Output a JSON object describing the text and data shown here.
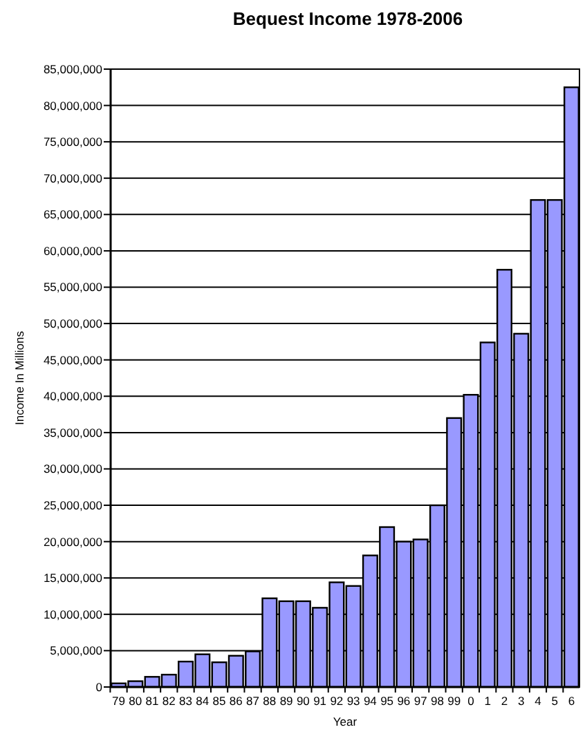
{
  "chart_data": {
    "type": "bar",
    "title": "Bequest Income 1978-2006",
    "xlabel": "Year",
    "ylabel": "Income In Millions",
    "categories": [
      "79",
      "80",
      "81",
      "82",
      "83",
      "84",
      "85",
      "86",
      "87",
      "88",
      "89",
      "90",
      "91",
      "92",
      "93",
      "94",
      "95",
      "96",
      "97",
      "98",
      "99",
      "0",
      "1",
      "2",
      "3",
      "4",
      "5",
      "6"
    ],
    "values": [
      500000,
      800000,
      1400000,
      1700000,
      3500000,
      4500000,
      3400000,
      4300000,
      4900000,
      12200000,
      11800000,
      11800000,
      10900000,
      14400000,
      13900000,
      18100000,
      22000000,
      20000000,
      20300000,
      25000000,
      37000000,
      40200000,
      47400000,
      57400000,
      48600000,
      67000000,
      67000000,
      82500000
    ],
    "color": "#9999ff",
    "ylim": [
      0,
      85000000
    ],
    "yticks": [
      {
        "value": 0,
        "label": "0"
      },
      {
        "value": 5000000,
        "label": "5,000,000"
      },
      {
        "value": 10000000,
        "label": "10,000,000"
      },
      {
        "value": 15000000,
        "label": "15,000,000"
      },
      {
        "value": 20000000,
        "label": "20,000,000"
      },
      {
        "value": 25000000,
        "label": "25,000,000"
      },
      {
        "value": 30000000,
        "label": "30,000,000"
      },
      {
        "value": 35000000,
        "label": "35,000,000"
      },
      {
        "value": 40000000,
        "label": "40,000,000"
      },
      {
        "value": 45000000,
        "label": "45,000,000"
      },
      {
        "value": 50000000,
        "label": "50,000,000"
      },
      {
        "value": 55000000,
        "label": "55,000,000"
      },
      {
        "value": 60000000,
        "label": "60,000,000"
      },
      {
        "value": 65000000,
        "label": "65,000,000"
      },
      {
        "value": 70000000,
        "label": "70,000,000"
      },
      {
        "value": 75000000,
        "label": "75,000,000"
      },
      {
        "value": 80000000,
        "label": "80,000,000"
      },
      {
        "value": 85000000,
        "label": "85,000,000"
      }
    ],
    "grid": "y"
  }
}
